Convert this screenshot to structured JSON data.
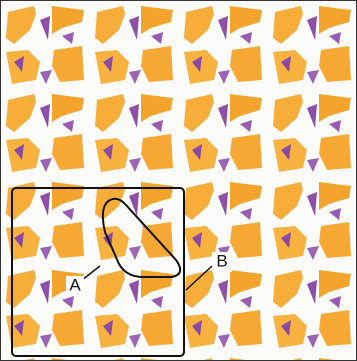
{
  "callouts": [
    {
      "label": "A"
    },
    {
      "label": "B"
    }
  ]
}
